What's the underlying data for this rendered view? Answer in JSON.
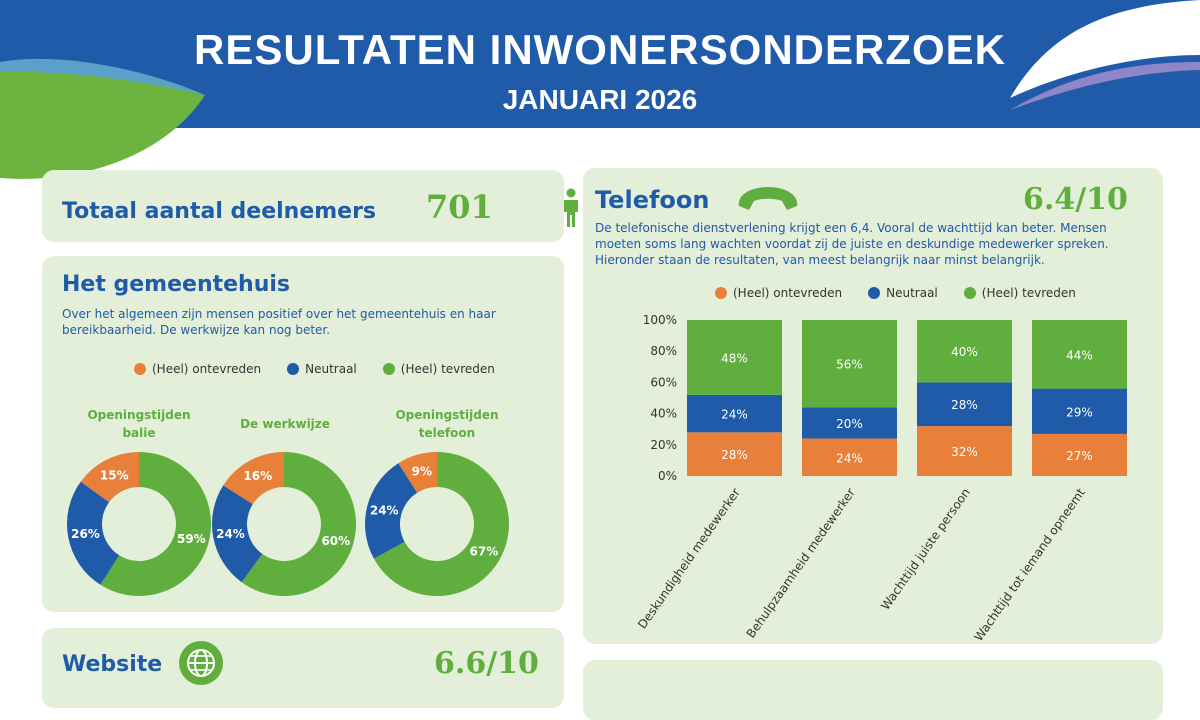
{
  "header": {
    "title": "RESULTATEN INWONERSONDERZOEK",
    "subtitle": "JANUARI 2026"
  },
  "participants": {
    "label": "Totaal aantal deelnemers",
    "value": "701",
    "icon": "person-icon"
  },
  "colors": {
    "ontevreden": "#e8803a",
    "neutraal": "#1f5ba8",
    "tevreden": "#5fae3e"
  },
  "gemeentehuis": {
    "title": "Het gemeentehuis",
    "description_lines": [
      "Over het algemeen zijn mensen positief over het gemeentehuis en haar",
      "bereikbaarheid. De werkwijze kan nog beter."
    ]
  },
  "legend": [
    "(Heel) ontevreden",
    "Neutraal",
    "(Heel) tevreden"
  ],
  "telefoon": {
    "title": "Telefoon",
    "score": "6.4/10",
    "icon": "phone-icon",
    "description_lines": [
      "De telefonische dienstverlening krijgt een 6,4. Vooral de wachttijd kan beter. Mensen",
      "moeten soms lang wachten voordat zij de juiste en deskundige medewerker spreken.",
      "Hieronder staan de resultaten, van meest belangrijk naar minst belangrijk."
    ]
  },
  "website": {
    "title": "Website",
    "score": "6.6/10",
    "icon": "globe-icon"
  },
  "chart_data": [
    {
      "type": "pie",
      "title": "Openingstijden balie",
      "categories": [
        "(Heel) ontevreden",
        "Neutraal",
        "(Heel) tevreden"
      ],
      "values": [
        15,
        26,
        59
      ],
      "labels": [
        "15%",
        "26%",
        "59%"
      ]
    },
    {
      "type": "pie",
      "title": "De werkwijze",
      "categories": [
        "(Heel) ontevreden",
        "Neutraal",
        "(Heel) tevreden"
      ],
      "values": [
        16,
        24,
        60
      ],
      "labels": [
        "16%",
        "24%",
        "60%"
      ]
    },
    {
      "type": "pie",
      "title": "Openingstijden telefoon",
      "categories": [
        "(Heel) ontevreden",
        "Neutraal",
        "(Heel) tevreden"
      ],
      "values": [
        9,
        24,
        67
      ],
      "labels": [
        "9%",
        "24%",
        "67%"
      ]
    },
    {
      "type": "bar",
      "stacked": true,
      "categories": [
        "Deskundigheid medewerker",
        "Behulpzaamheid medewerker",
        "Wachttijd juiste persoon",
        "Wachttijd tot iemand opneemt"
      ],
      "series": [
        {
          "name": "(Heel) ontevreden",
          "values": [
            28,
            24,
            32,
            27
          ],
          "labels": [
            "28%",
            "24%",
            "32%",
            "27%"
          ]
        },
        {
          "name": "Neutraal",
          "values": [
            24,
            20,
            28,
            29
          ],
          "labels": [
            "24%",
            "20%",
            "28%",
            "29%"
          ]
        },
        {
          "name": "(Heel) tevreden",
          "values": [
            48,
            56,
            40,
            44
          ],
          "labels": [
            "48%",
            "56%",
            "40%",
            "44%"
          ]
        }
      ],
      "ylim": [
        0,
        100
      ],
      "yticks": [
        "0%",
        "20%",
        "40%",
        "60%",
        "80%",
        "100%"
      ],
      "grid": false,
      "legend": "top"
    }
  ]
}
